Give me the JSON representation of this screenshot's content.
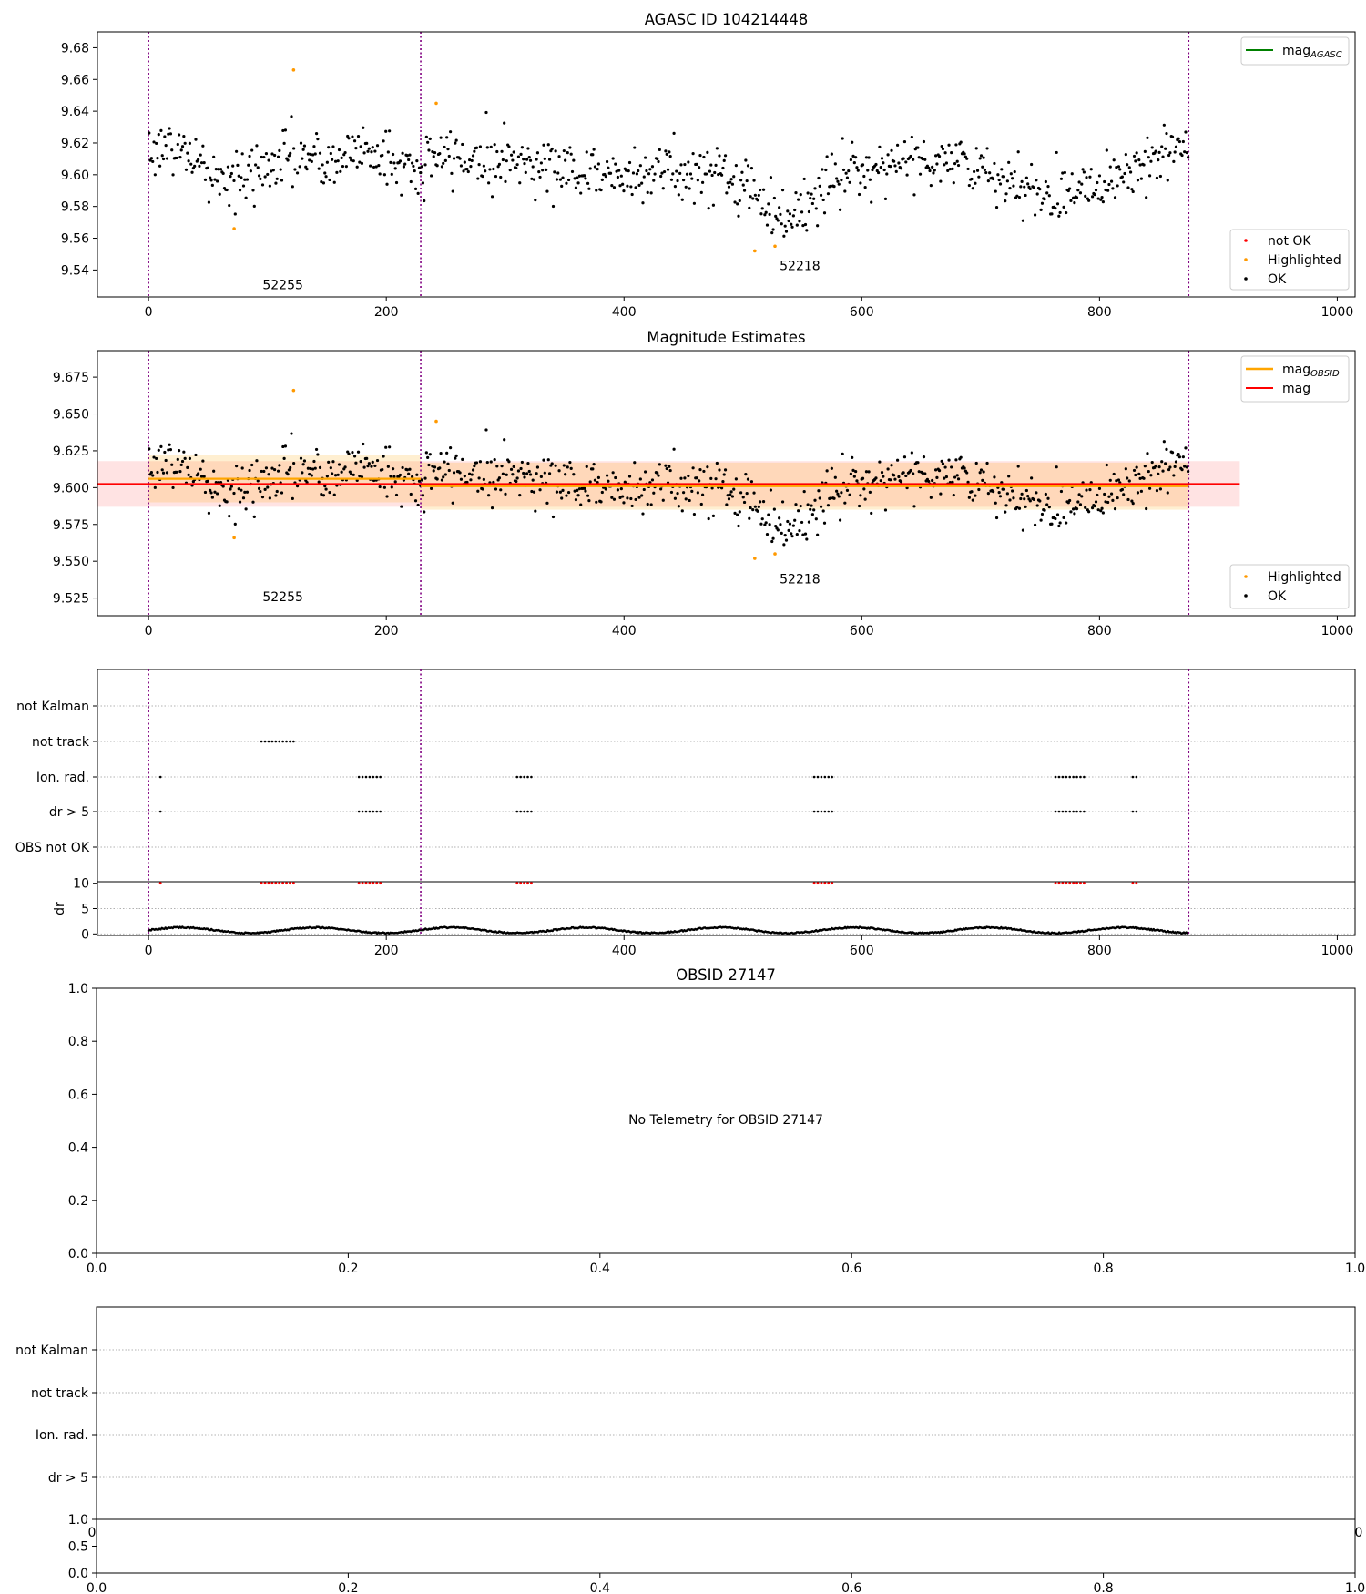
{
  "figure": {
    "colors": {
      "ok": "#000000",
      "highlighted": "#ff9900",
      "not_ok": "#ff0000",
      "mag_agasc": "#008000",
      "mag_obsid": "#ffa500",
      "mag": "#ff0000",
      "obsid_line": "#800080"
    }
  },
  "chart_data": [
    {
      "type": "scatter",
      "title": "AGASC ID 104214448",
      "xlim": [
        -43,
        1015
      ],
      "ylim": [
        9.523,
        9.69
      ],
      "xticks": [
        0,
        200,
        400,
        600,
        800,
        1000
      ],
      "yticks": [
        9.54,
        9.56,
        9.58,
        9.6,
        9.62,
        9.64,
        9.66,
        9.68
      ],
      "ytick_labels": [
        "9.54",
        "9.56",
        "9.58",
        "9.60",
        "9.62",
        "9.64",
        "9.66",
        "9.68"
      ],
      "obsid_boundaries": [
        0,
        229,
        875
      ],
      "obsid_labels": [
        {
          "text": "52255",
          "x": 113,
          "y": 9.528
        },
        {
          "text": "52218",
          "x": 548,
          "y": 9.54
        }
      ],
      "legend_upper": [
        {
          "label": "mag",
          "sub": "AGASC",
          "color": "#008000"
        }
      ],
      "legend_lower": [
        {
          "label": "not OK",
          "color": "#ff0000"
        },
        {
          "label": "Highlighted",
          "color": "#ff9900"
        },
        {
          "label": "OK",
          "color": "#000000"
        }
      ],
      "series": [
        {
          "name": "Highlighted",
          "points": [
            [
              72,
              9.566
            ],
            [
              122,
              9.666
            ],
            [
              242,
              9.645
            ],
            [
              510,
              9.552
            ],
            [
              527,
              9.555
            ]
          ]
        },
        {
          "name": "OK",
          "trend": [
            [
              0,
              9.618
            ],
            [
              30,
              9.615
            ],
            [
              60,
              9.596
            ],
            [
              85,
              9.598
            ],
            [
              120,
              9.614
            ],
            [
              150,
              9.605
            ],
            [
              180,
              9.618
            ],
            [
              210,
              9.607
            ],
            [
              229,
              9.6
            ],
            [
              240,
              9.612
            ],
            [
              290,
              9.61
            ],
            [
              330,
              9.607
            ],
            [
              380,
              9.6
            ],
            [
              430,
              9.602
            ],
            [
              480,
              9.601
            ],
            [
              510,
              9.589
            ],
            [
              530,
              9.575
            ],
            [
              555,
              9.578
            ],
            [
              575,
              9.598
            ],
            [
              620,
              9.608
            ],
            [
              660,
              9.61
            ],
            [
              690,
              9.608
            ],
            [
              720,
              9.592
            ],
            [
              760,
              9.588
            ],
            [
              800,
              9.596
            ],
            [
              840,
              9.609
            ],
            [
              875,
              9.615
            ]
          ],
          "spread": 0.009,
          "n": 870
        }
      ]
    },
    {
      "type": "scatter",
      "title": "Magnitude Estimates",
      "xlim": [
        -43,
        1015
      ],
      "ylim": [
        9.513,
        9.693
      ],
      "xticks": [
        0,
        200,
        400,
        600,
        800,
        1000
      ],
      "yticks": [
        9.525,
        9.55,
        9.575,
        9.6,
        9.625,
        9.65,
        9.675
      ],
      "ytick_labels": [
        "9.525",
        "9.550",
        "9.575",
        "9.600",
        "9.625",
        "9.650",
        "9.675"
      ],
      "obsid_boundaries": [
        0,
        229,
        875
      ],
      "obsid_labels": [
        {
          "text": "52255",
          "x": 113,
          "y": 9.523
        },
        {
          "text": "52218",
          "x": 548,
          "y": 9.535
        }
      ],
      "legend_upper": [
        {
          "label": "mag",
          "sub": "OBSID",
          "color": "#ffa500"
        },
        {
          "label": "mag",
          "sub": "",
          "color": "#ff0000"
        }
      ],
      "legend_lower": [
        {
          "label": "Highlighted",
          "color": "#ff9900"
        },
        {
          "label": "OK",
          "color": "#000000"
        }
      ],
      "mag": {
        "value": 9.6025,
        "band": [
          9.587,
          9.618
        ],
        "x_range": [
          -43,
          918
        ]
      },
      "mag_obsid": [
        {
          "x_range": [
            0,
            229
          ],
          "value": 9.606,
          "band": [
            9.59,
            9.622
          ]
        },
        {
          "x_range": [
            229,
            875
          ],
          "value": 9.601,
          "band": [
            9.585,
            9.617
          ]
        }
      ]
    },
    {
      "type": "scatter",
      "title": "",
      "xlim": [
        -43,
        1015
      ],
      "xticks": [
        0,
        200,
        400,
        600,
        800,
        1000
      ],
      "categories": [
        "not Kalman",
        "not track",
        "Ion. rad.",
        "dr > 5",
        "OBS not OK"
      ],
      "obsid_boundaries": [
        0,
        229,
        875
      ],
      "flags": {
        "not track": [
          [
            95,
            122
          ]
        ],
        "Ion. rad.": [
          [
            10,
            10
          ],
          [
            177,
            197
          ],
          [
            310,
            322
          ],
          [
            560,
            575
          ],
          [
            763,
            788
          ],
          [
            828,
            832
          ]
        ],
        "dr > 5": [
          [
            10,
            10
          ],
          [
            177,
            197
          ],
          [
            310,
            322
          ],
          [
            560,
            575
          ],
          [
            763,
            788
          ],
          [
            828,
            832
          ]
        ],
        "not OK": [
          [
            10,
            10
          ],
          [
            95,
            122
          ],
          [
            177,
            197
          ],
          [
            310,
            322
          ],
          [
            560,
            575
          ],
          [
            763,
            788
          ],
          [
            828,
            832
          ]
        ]
      },
      "dr_panel": {
        "ylabel": "dr",
        "ylim": [
          -0.3,
          10.3
        ],
        "yticks": [
          0,
          5,
          10
        ]
      }
    },
    {
      "type": "scatter",
      "title": "OBSID 27147",
      "xlim": [
        0.0,
        1.0
      ],
      "ylim": [
        0.0,
        1.0
      ],
      "xticks": [
        0.0,
        0.2,
        0.4,
        0.6,
        0.8,
        1.0
      ],
      "yticks": [
        0.0,
        0.2,
        0.4,
        0.6,
        0.8,
        1.0
      ],
      "xtick_labels": [
        "0.0",
        "0.2",
        "0.4",
        "0.6",
        "0.8",
        "1.0"
      ],
      "ytick_labels": [
        "0.0",
        "0.2",
        "0.4",
        "0.6",
        "0.8",
        "1.0"
      ],
      "annotation": "No Telemetry for OBSID 27147"
    },
    {
      "type": "scatter",
      "title": "",
      "categories": [
        "not Kalman",
        "not track",
        "Ion. rad.",
        "dr > 5"
      ],
      "bottom_xticks": [
        0.0,
        0.2,
        0.4,
        0.6,
        0.8,
        1.0
      ],
      "bottom_xtick_labels": [
        "0.0",
        "0.2",
        "0.4",
        "0.6",
        "0.8",
        "1.0"
      ],
      "bottom_yticks": [
        0.0,
        0.5,
        1.0
      ],
      "bottom_ytick_labels": [
        "0.0",
        "0.5",
        "1.0"
      ],
      "partial_tick_labels": [
        "0",
        "0"
      ]
    }
  ]
}
